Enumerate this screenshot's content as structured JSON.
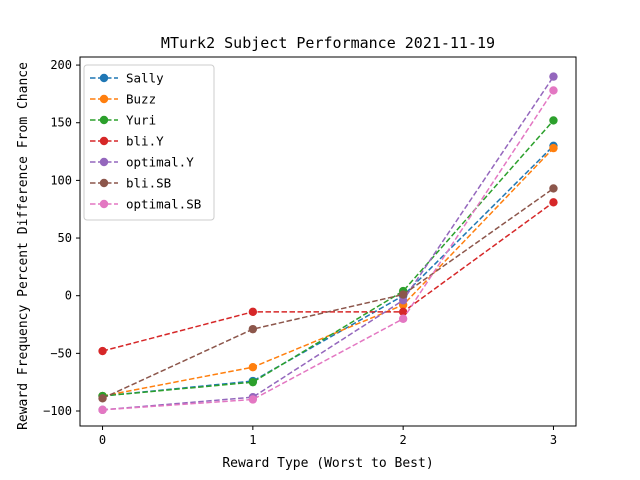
{
  "chart_data": {
    "type": "line",
    "title": "MTurk2 Subject Performance 2021-11-19",
    "xlabel": "Reward Type (Worst to Best)",
    "ylabel": "Reward Frequency Percent Difference From Chance",
    "x": [
      0,
      1,
      2,
      3
    ],
    "xticks": [
      "0",
      "1",
      "2",
      "3"
    ],
    "yticks": [
      "−100",
      "−50",
      "0",
      "50",
      "100",
      "150",
      "200"
    ],
    "xlim": [
      -0.15,
      3.15
    ],
    "ylim": [
      -113,
      207
    ],
    "grid": false,
    "legend_position": "upper-left",
    "line_style": "dashed",
    "marker": "circle",
    "series": [
      {
        "name": "Sally",
        "color": "#1f77b4",
        "values": [
          -87,
          -74,
          0,
          130
        ]
      },
      {
        "name": "Buzz",
        "color": "#ff7f0e",
        "values": [
          -87,
          -62,
          -8,
          128
        ]
      },
      {
        "name": "Yuri",
        "color": "#2ca02c",
        "values": [
          -87,
          -75,
          4,
          152
        ]
      },
      {
        "name": "bli.Y",
        "color": "#d62728",
        "values": [
          -48,
          -14,
          -14,
          81
        ]
      },
      {
        "name": "optimal.Y",
        "color": "#9467bd",
        "values": [
          -99,
          -88,
          -4,
          190
        ]
      },
      {
        "name": "bli.SB",
        "color": "#8c564b",
        "values": [
          -89,
          -29,
          1,
          93
        ]
      },
      {
        "name": "optimal.SB",
        "color": "#e377c2",
        "values": [
          -99,
          -90,
          -20,
          178
        ]
      }
    ]
  }
}
